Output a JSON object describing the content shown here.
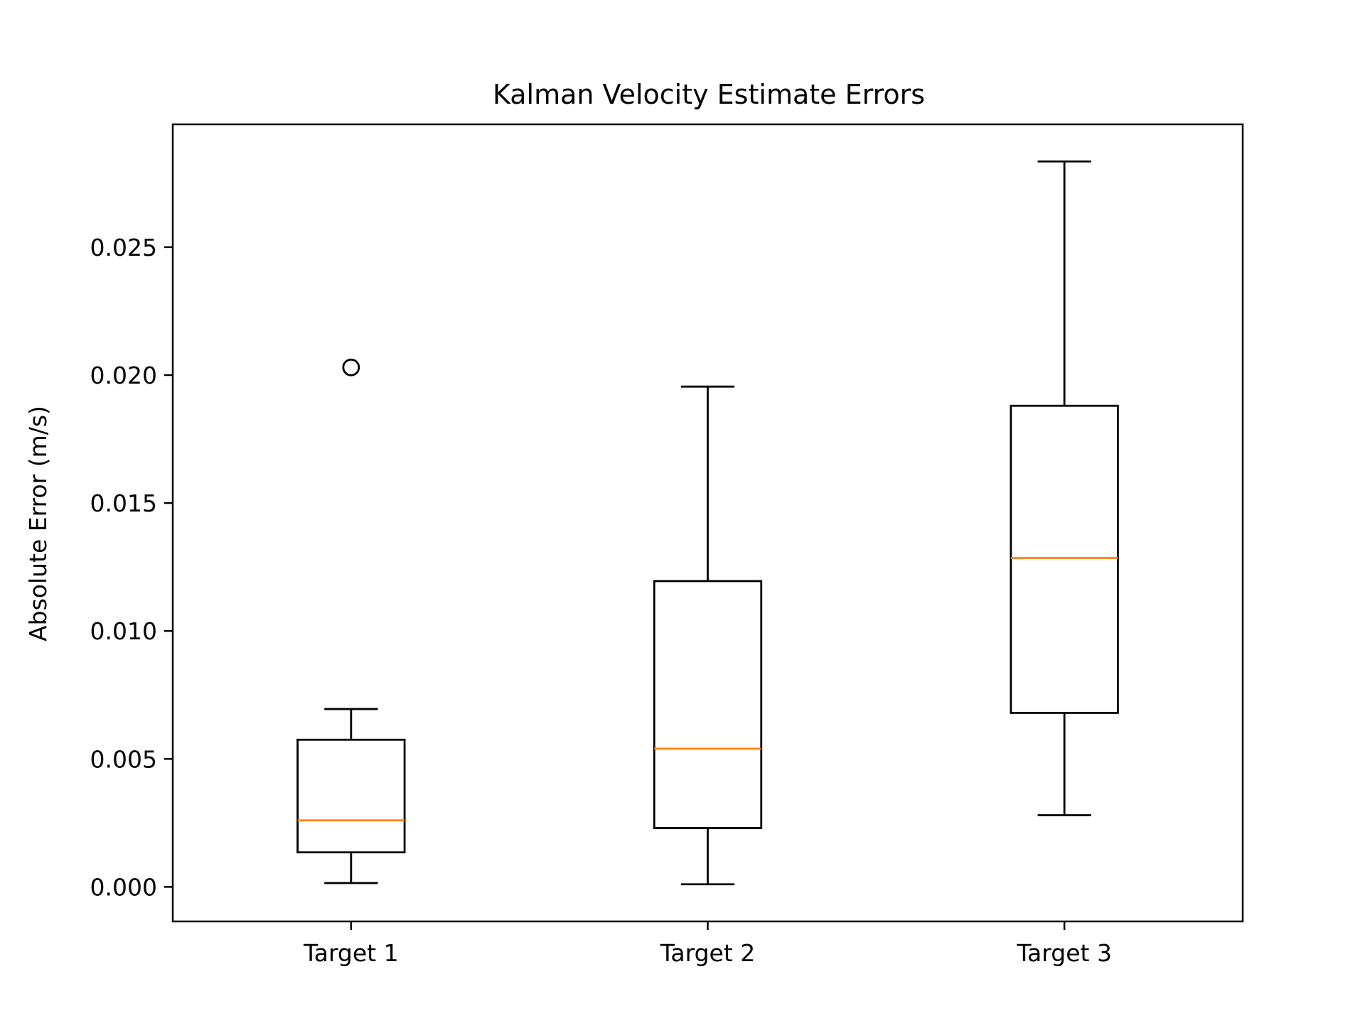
{
  "chart_data": {
    "type": "box",
    "title": "Kalman Velocity Estimate Errors",
    "xlabel": "",
    "ylabel": "Absolute Error (m/s)",
    "categories": [
      "Target 1",
      "Target 2",
      "Target 3"
    ],
    "ylim": [
      -0.00135,
      0.0298
    ],
    "yticks": [
      0.0,
      0.005,
      0.01,
      0.015,
      0.02,
      0.025
    ],
    "ytick_labels": [
      "0.000",
      "0.005",
      "0.010",
      "0.015",
      "0.020",
      "0.025"
    ],
    "grid": false,
    "boxes": [
      {
        "label": "Target 1",
        "whisker_low": 0.00015,
        "q1": 0.00135,
        "median": 0.0026,
        "q3": 0.00575,
        "whisker_high": 0.00695,
        "outliers": [
          0.0203
        ]
      },
      {
        "label": "Target 2",
        "whisker_low": 0.0001,
        "q1": 0.0023,
        "median": 0.0054,
        "q3": 0.01195,
        "whisker_high": 0.01955,
        "outliers": []
      },
      {
        "label": "Target 3",
        "whisker_low": 0.0028,
        "q1": 0.0068,
        "median": 0.01285,
        "q3": 0.0188,
        "whisker_high": 0.02835,
        "outliers": []
      }
    ],
    "colors": {
      "box": "#000000",
      "median": "#ff7f0e",
      "axes": "#000000"
    }
  }
}
